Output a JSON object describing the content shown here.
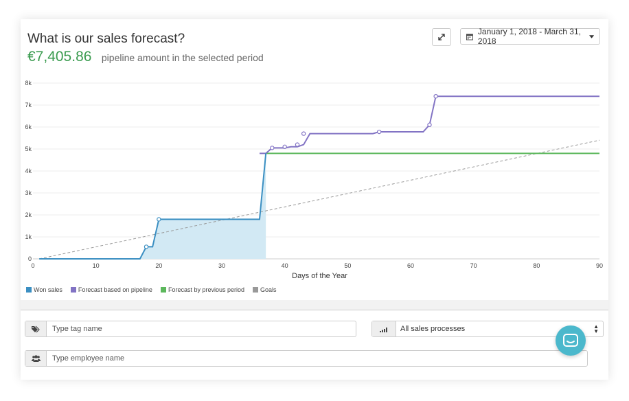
{
  "header": {
    "title": "What is our sales forecast?",
    "amount": "€7,405.86",
    "amount_desc": "pipeline amount in the selected period"
  },
  "toolbar": {
    "date_range": "January 1, 2018 - March 31, 2018"
  },
  "chart_data": {
    "type": "line",
    "xlabel": "Days of the Year",
    "ylabel": "",
    "xlim": [
      0,
      90
    ],
    "ylim": [
      0,
      8000
    ],
    "x_ticks": [
      "0",
      "10",
      "20",
      "30",
      "40",
      "50",
      "60",
      "70",
      "80",
      "90"
    ],
    "y_ticks": [
      "0",
      "1k",
      "2k",
      "3k",
      "4k",
      "5k",
      "6k",
      "7k",
      "8k"
    ],
    "grid": true,
    "legend_position": "bottom-left",
    "series": [
      {
        "name": "Won sales",
        "color": "#3b8fc2",
        "fill": "#d2e9f4",
        "points": [
          [
            1,
            0
          ],
          [
            17,
            0
          ],
          [
            18,
            550
          ],
          [
            19,
            550
          ],
          [
            20,
            1800
          ],
          [
            36,
            1800
          ],
          [
            37,
            4800
          ]
        ],
        "markers": [
          [
            18,
            550
          ],
          [
            20,
            1800
          ]
        ]
      },
      {
        "name": "Forecast based on pipeline",
        "color": "#8273c4",
        "points": [
          [
            36,
            4800
          ],
          [
            37,
            4800
          ],
          [
            38,
            5050
          ],
          [
            40,
            5050
          ],
          [
            41,
            5100
          ],
          [
            42,
            5100
          ],
          [
            43,
            5200
          ],
          [
            44,
            5700
          ],
          [
            54,
            5700
          ],
          [
            55,
            5780
          ],
          [
            62,
            5780
          ],
          [
            63,
            6100
          ],
          [
            64,
            7400
          ],
          [
            90,
            7400
          ]
        ],
        "markers": [
          [
            38,
            5050
          ],
          [
            40,
            5100
          ],
          [
            42,
            5200
          ],
          [
            43,
            5700
          ],
          [
            55,
            5780
          ],
          [
            63,
            6100
          ],
          [
            64,
            7400
          ]
        ]
      },
      {
        "name": "Forecast by previous period",
        "color": "#5cb85c",
        "points": [
          [
            37,
            4800
          ],
          [
            90,
            4800
          ]
        ]
      },
      {
        "name": "Goals",
        "color": "#999999",
        "dashed": true,
        "points": [
          [
            1,
            0
          ],
          [
            90,
            5400
          ]
        ]
      }
    ]
  },
  "filters": {
    "tag_placeholder": "Type tag name",
    "process_value": "All sales processes",
    "employee_placeholder": "Type employee name"
  },
  "icons": {
    "expand": "expand-icon",
    "calendar": "calendar-icon",
    "caret": "caret-down-icon",
    "tag": "tag-icon",
    "pipeline": "pipeline-icon",
    "users": "users-icon",
    "chat": "chat-icon"
  }
}
